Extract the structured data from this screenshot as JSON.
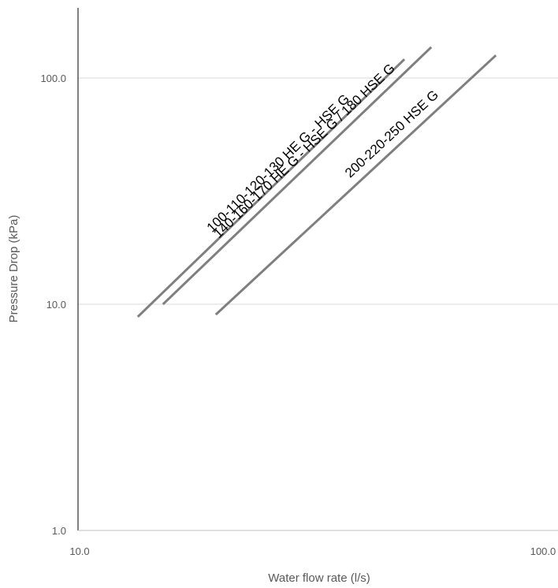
{
  "chart_data": {
    "type": "line",
    "title": "",
    "xlabel": "Water flow rate (l/s)",
    "ylabel": "Pressure Drop (kPa)",
    "xscale": "log",
    "yscale": "log",
    "xlim": [
      10.0,
      100.0
    ],
    "ylim": [
      1.0,
      200.0
    ],
    "x_ticks": [
      "10.0",
      "100.0"
    ],
    "y_ticks": [
      "1.0",
      "10.0",
      "100.0"
    ],
    "grid": "horizontal major gridlines",
    "legend": "none (series labeled inline along lines)",
    "line_color": "#7f7f7f",
    "series": [
      {
        "name": "100-110-120-130 HE G - HSE G",
        "x": [
          13.3,
          47.5
        ],
        "y": [
          8.8,
          121.0
        ]
      },
      {
        "name": "140-160-170 HE G - HSE G / 180 HSE G",
        "x": [
          15.0,
          54.0
        ],
        "y": [
          10.0,
          137.0
        ]
      },
      {
        "name": "200-220-250 HSE G",
        "x": [
          19.3,
          73.5
        ],
        "y": [
          9.0,
          126.0
        ]
      }
    ]
  }
}
